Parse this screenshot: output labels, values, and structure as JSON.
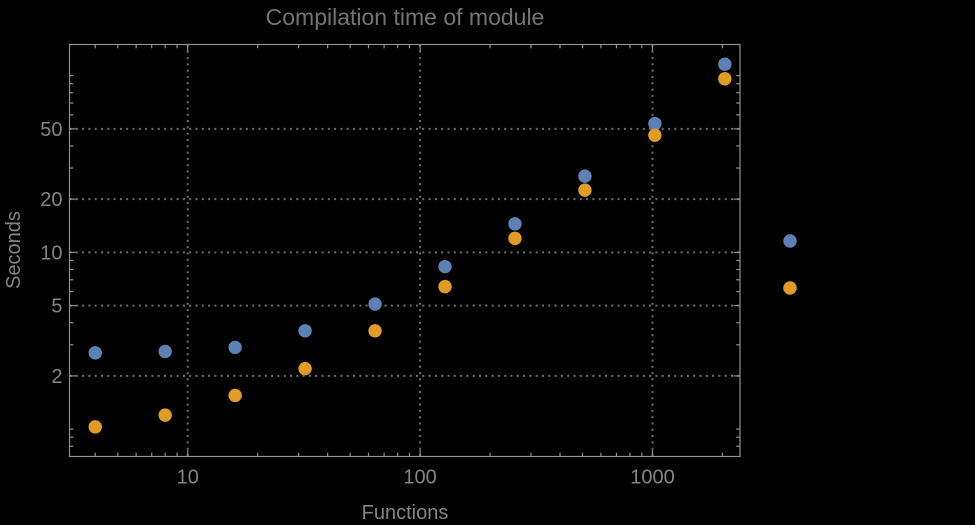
{
  "chart_data": {
    "type": "scatter",
    "title": "Compilation time of module",
    "xlabel": "Functions",
    "ylabel": "Seconds",
    "x_scale": "log",
    "y_scale": "log",
    "xlim": [
      3.1,
      2380
    ],
    "ylim": [
      0.7,
      150
    ],
    "x_major_ticks": [
      10,
      100,
      1000
    ],
    "x_minor_ticks": [
      4,
      5,
      6,
      7,
      8,
      9,
      20,
      30,
      40,
      50,
      60,
      70,
      80,
      90,
      200,
      300,
      400,
      500,
      600,
      700,
      800,
      900,
      2000
    ],
    "y_major_ticks": [
      2,
      5,
      10,
      20,
      50
    ],
    "y_minor_ticks": [
      0.8,
      0.9,
      1,
      3,
      4,
      6,
      7,
      8,
      9,
      30,
      40,
      60,
      70,
      80,
      90,
      100
    ],
    "grid": "dotted lines at major ticks only",
    "legend": {
      "position": "outside-right",
      "labels_visible": false
    },
    "x": [
      4,
      8,
      16,
      32,
      64,
      128,
      256,
      512,
      1024,
      2048
    ],
    "series": [
      {
        "name": "blue",
        "color": "#5E81B5",
        "values": [
          2.7,
          2.75,
          2.9,
          3.6,
          5.1,
          8.3,
          14.5,
          27,
          53.5,
          116
        ]
      },
      {
        "name": "orange",
        "color": "#E19C24",
        "values": [
          1.03,
          1.2,
          1.55,
          2.2,
          3.6,
          6.4,
          12,
          22.5,
          46,
          96
        ]
      }
    ]
  },
  "colors": {
    "background": "#000000",
    "frame": "#909090",
    "grid": "#6e6e6e",
    "title": "#747474",
    "axis_label": "#848484",
    "tick_label": "#848484",
    "series_blue": "#5E81B5",
    "series_orange": "#E19C24"
  }
}
